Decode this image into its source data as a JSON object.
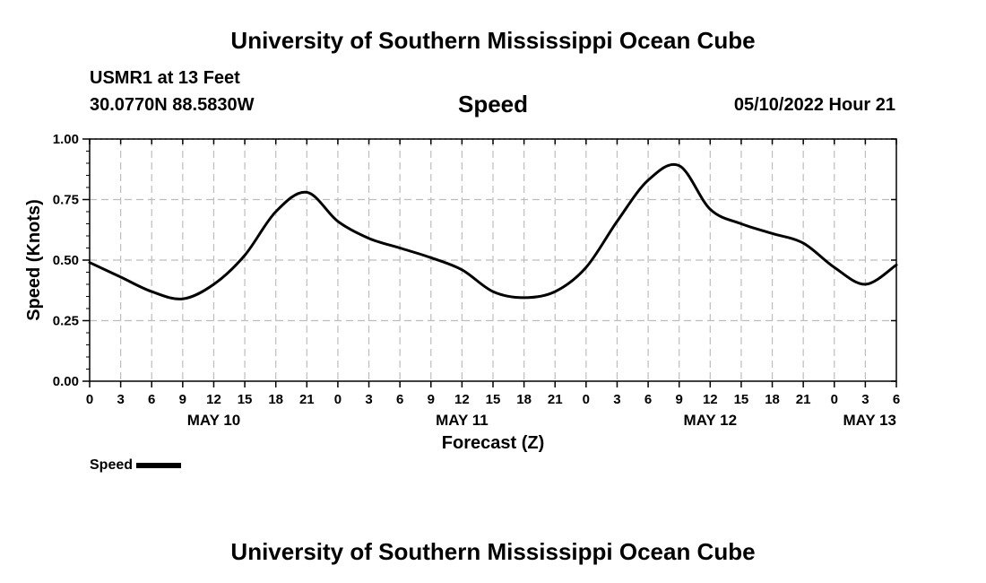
{
  "header": {
    "title": "University of Southern Mississippi Ocean Cube",
    "station": "USMR1 at 13 Feet",
    "coords": "30.0770N  88.5830W",
    "param": "Speed",
    "datetime": "05/10/2022 Hour 21"
  },
  "footer": {
    "title": "University of Southern Mississippi Ocean Cube"
  },
  "legend": {
    "label": "Speed",
    "color": "#000000"
  },
  "chart_data": {
    "type": "line",
    "title": "Speed",
    "xlabel": "Forecast (Z)",
    "ylabel": "Speed (Knots)",
    "ylim": [
      0,
      1
    ],
    "xlim": [
      0,
      78
    ],
    "yticks": [
      "0.00",
      "0.25",
      "0.50",
      "0.75",
      "1.00"
    ],
    "xtick_labels": [
      "0",
      "3",
      "6",
      "9",
      "12",
      "15",
      "18",
      "21",
      "0",
      "3",
      "6",
      "9",
      "12",
      "15",
      "18",
      "21",
      "0",
      "3",
      "6",
      "9",
      "12",
      "15",
      "18",
      "21",
      "0",
      "3",
      "6"
    ],
    "date_labels": [
      {
        "label": "MAY 10",
        "hour": 12
      },
      {
        "label": "MAY 11",
        "hour": 36
      },
      {
        "label": "MAY 12",
        "hour": 60
      },
      {
        "label": "MAY 13",
        "hour": 78
      }
    ],
    "grid": true,
    "series": [
      {
        "name": "Speed",
        "color": "#000000",
        "x": [
          0,
          3,
          6,
          9,
          12,
          15,
          18,
          21,
          24,
          27,
          30,
          33,
          36,
          39,
          42,
          45,
          48,
          51,
          54,
          57,
          60,
          63,
          66,
          69,
          72,
          75,
          78
        ],
        "y": [
          0.49,
          0.43,
          0.37,
          0.34,
          0.4,
          0.52,
          0.7,
          0.78,
          0.66,
          0.59,
          0.55,
          0.51,
          0.46,
          0.37,
          0.345,
          0.37,
          0.47,
          0.66,
          0.83,
          0.89,
          0.71,
          0.65,
          0.61,
          0.57,
          0.47,
          0.4,
          0.48
        ]
      }
    ]
  }
}
